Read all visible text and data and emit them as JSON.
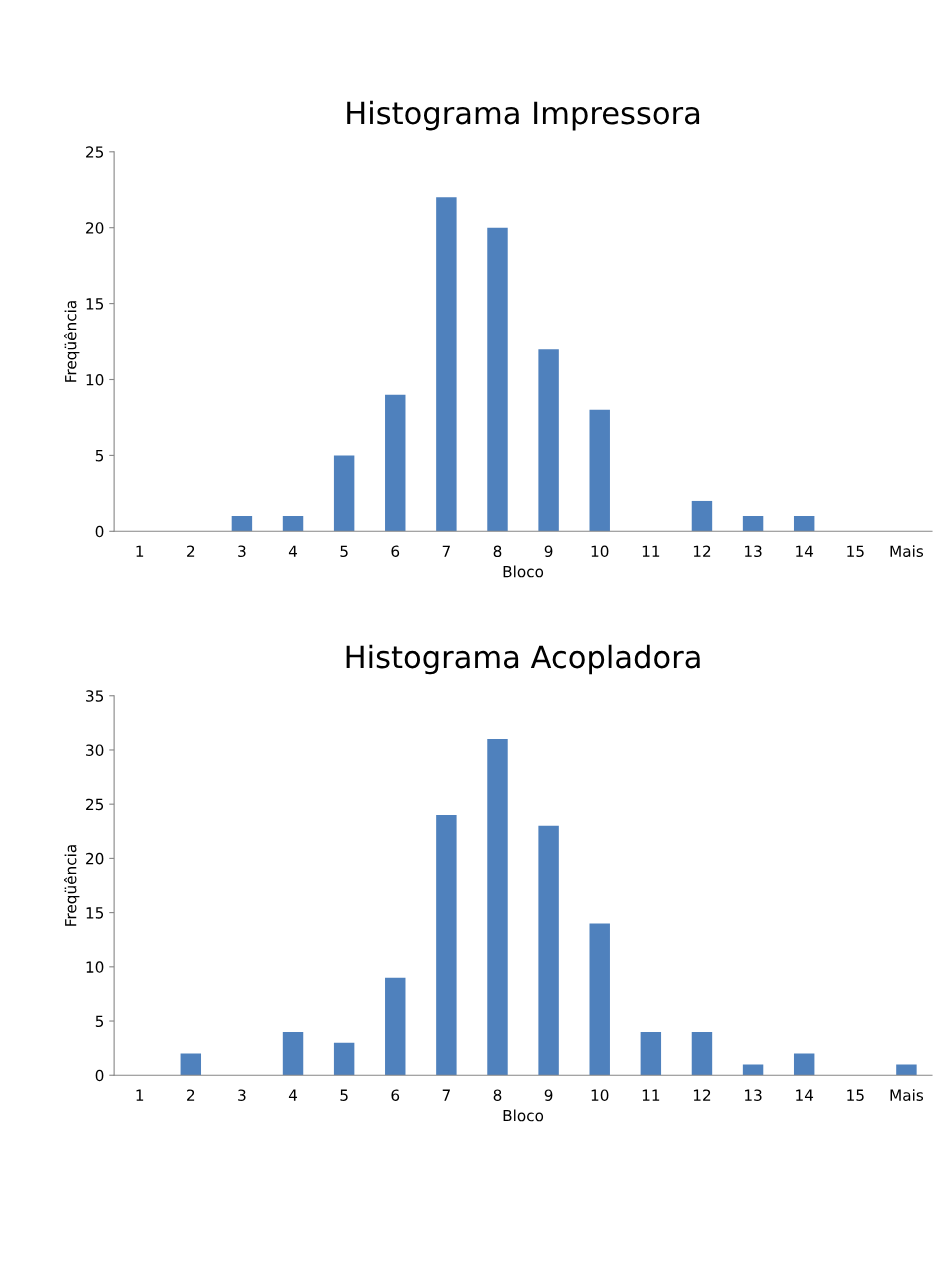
{
  "chart_data": [
    {
      "type": "bar",
      "title": "Histograma Impressora",
      "xlabel": "Bloco",
      "ylabel": "Freqüência",
      "categories": [
        "1",
        "2",
        "3",
        "4",
        "5",
        "6",
        "7",
        "8",
        "9",
        "10",
        "11",
        "12",
        "13",
        "14",
        "15",
        "Mais"
      ],
      "values": [
        0,
        0,
        1,
        1,
        5,
        9,
        22,
        20,
        12,
        8,
        0,
        2,
        1,
        1,
        0,
        0
      ],
      "color": "#4f81bd",
      "ylim": [
        0,
        25
      ],
      "yticks": [
        0,
        5,
        10,
        15,
        20,
        25
      ],
      "grid": false,
      "legend": false
    },
    {
      "type": "bar",
      "title": "Histograma Acopladora",
      "xlabel": "Bloco",
      "ylabel": "Freqüência",
      "categories": [
        "1",
        "2",
        "3",
        "4",
        "5",
        "6",
        "7",
        "8",
        "9",
        "10",
        "11",
        "12",
        "13",
        "14",
        "15",
        "Mais"
      ],
      "values": [
        0,
        2,
        0,
        4,
        3,
        9,
        24,
        31,
        23,
        14,
        4,
        4,
        1,
        2,
        0,
        1
      ],
      "color": "#4f81bd",
      "ylim": [
        0,
        35
      ],
      "yticks": [
        0,
        5,
        10,
        15,
        20,
        25,
        30,
        35
      ],
      "grid": false,
      "legend": false
    }
  ]
}
